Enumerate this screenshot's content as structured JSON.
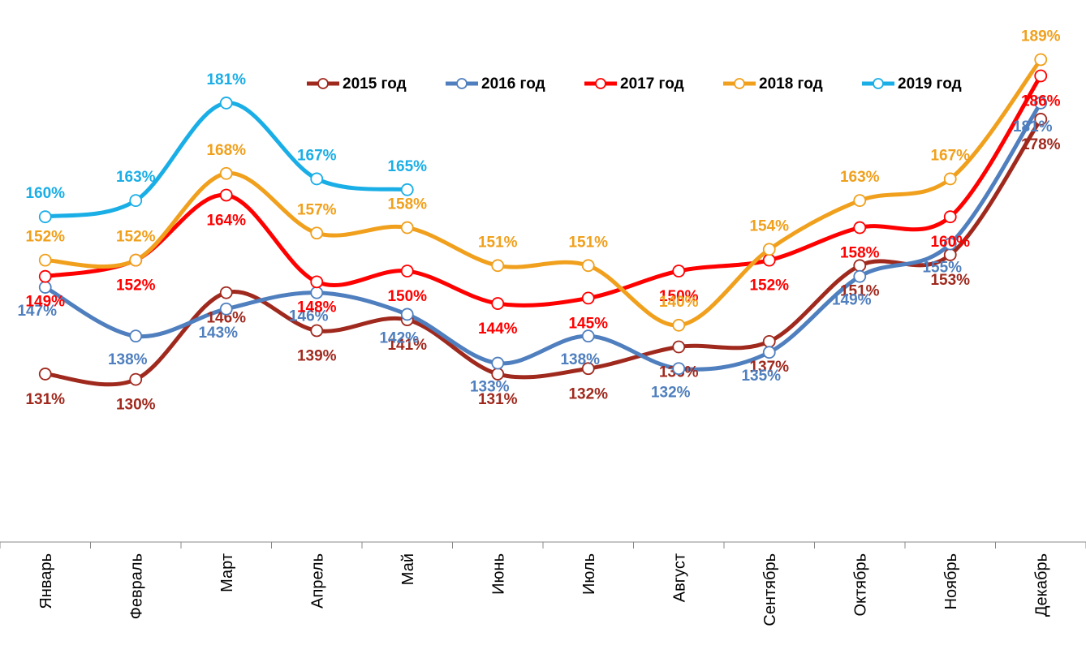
{
  "chart_data": {
    "type": "line",
    "categories": [
      "Январь",
      "Февраль",
      "Март",
      "Апрель",
      "Май",
      "Июнь",
      "Июль",
      "Август",
      "Сентябрь",
      "Октябрь",
      "Ноябрь",
      "Декабрь"
    ],
    "ylim": [
      100,
      200
    ],
    "legend": "top",
    "series": [
      {
        "name": "2015 год",
        "color": "#a0291e",
        "values": [
          131,
          130,
          146,
          139,
          141,
          131,
          132,
          136,
          137,
          151,
          153,
          178
        ],
        "value_labels": [
          "131%",
          "130%",
          "146%",
          "139%",
          "141%",
          "131%",
          "132%",
          "136%",
          "137%",
          "151%",
          "153%",
          "178%"
        ]
      },
      {
        "name": "2016 год",
        "color": "#4f7fbe",
        "values": [
          147,
          138,
          143,
          146,
          142,
          133,
          138,
          132,
          135,
          149,
          155,
          181
        ],
        "value_labels": [
          "147%",
          "138%",
          "143%",
          "146%",
          "142%",
          "133%",
          "138%",
          "132%",
          "135%",
          "149%",
          "155%",
          "181%"
        ]
      },
      {
        "name": "2017 год",
        "color": "#ff0000",
        "values": [
          149,
          152,
          164,
          148,
          150,
          144,
          145,
          150,
          152,
          158,
          160,
          186
        ],
        "value_labels": [
          "149%",
          "152%",
          "164%",
          "148%",
          "150%",
          "144%",
          "145%",
          "150%",
          "152%",
          "158%",
          "160%",
          "186%"
        ]
      },
      {
        "name": "2018 год",
        "color": "#f0a01c",
        "values": [
          152,
          152,
          168,
          157,
          158,
          151,
          151,
          140,
          154,
          163,
          167,
          189
        ],
        "value_labels": [
          "152%",
          "152%",
          "168%",
          "157%",
          "158%",
          "151%",
          "151%",
          "140%",
          "154%",
          "163%",
          "167%",
          "189%"
        ]
      },
      {
        "name": "2019 год",
        "color": "#1aaee6",
        "values": [
          160,
          163,
          181,
          167,
          165,
          null,
          null,
          null,
          null,
          null,
          null,
          null
        ],
        "value_labels": [
          "160%",
          "163%",
          "181%",
          "167%",
          "165%",
          null,
          null,
          null,
          null,
          null,
          null,
          null
        ]
      }
    ]
  }
}
